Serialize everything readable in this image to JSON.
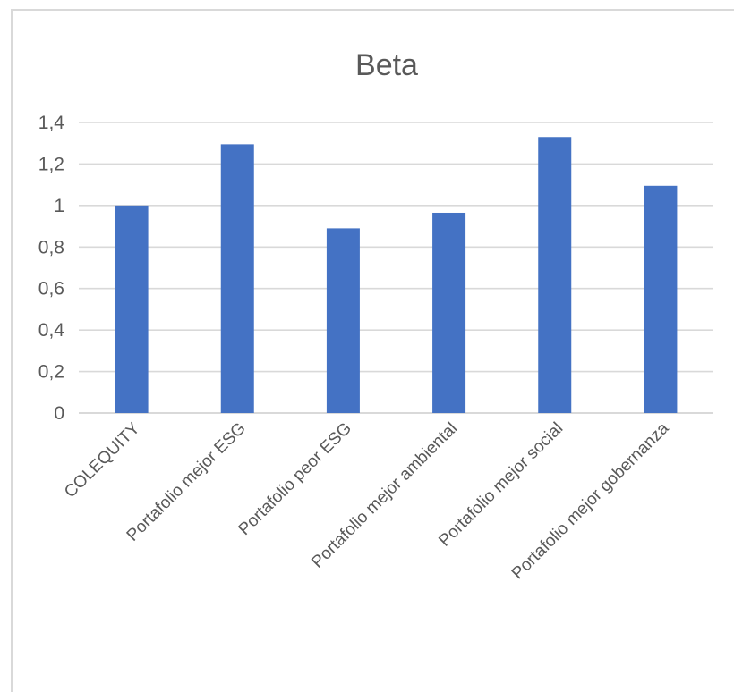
{
  "chart_data": {
    "type": "bar",
    "title": "Beta",
    "xlabel": "",
    "ylabel": "",
    "categories": [
      "COLEQUITY",
      "Portafolio mejor ESG",
      "Portafolio peor ESG",
      "Portafolio mejor ambiental",
      "Portafolio mejor social",
      "Portafolio mejor gobernanza"
    ],
    "values": [
      1.0,
      1.295,
      0.89,
      0.965,
      1.33,
      1.095
    ],
    "yticks": [
      "0",
      "0,2",
      "0,4",
      "0,6",
      "0,8",
      "1",
      "1,2",
      "1,4"
    ],
    "ylim": [
      0,
      1.4
    ],
    "grid": true,
    "legend": "none",
    "bar_color": "#4472c4",
    "grid_color": "#d9d9d9",
    "text_color": "#595959"
  }
}
